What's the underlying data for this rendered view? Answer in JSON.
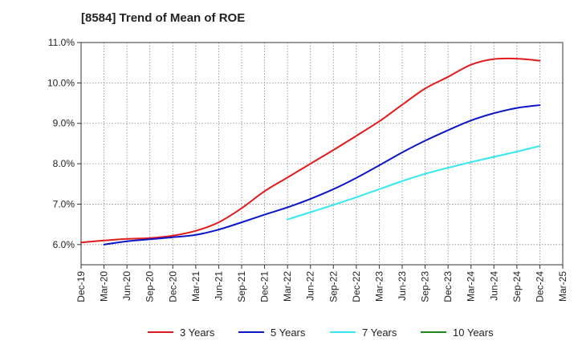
{
  "title": "[8584]  Trend of Mean of ROE",
  "chart_data": {
    "type": "line",
    "title": "[8584]  Trend of Mean of ROE",
    "xlabel": "",
    "ylabel": "",
    "x": [
      "Dec-19",
      "Mar-20",
      "Jun-20",
      "Sep-20",
      "Dec-20",
      "Mar-21",
      "Jun-21",
      "Sep-21",
      "Dec-21",
      "Mar-22",
      "Jun-22",
      "Sep-22",
      "Dec-22",
      "Mar-23",
      "Jun-23",
      "Sep-23",
      "Dec-23",
      "Mar-24",
      "Jun-24",
      "Sep-24",
      "Dec-24",
      "Mar-25"
    ],
    "yticks": [
      "6.0%",
      "7.0%",
      "8.0%",
      "9.0%",
      "10.0%",
      "11.0%"
    ],
    "ylim": [
      5.5,
      11.0
    ],
    "grid": true,
    "legend_position": "bottom",
    "series": [
      {
        "name": "3 Years",
        "color": "#e31a1c",
        "values": [
          6.05,
          6.1,
          6.14,
          6.16,
          6.22,
          6.34,
          6.55,
          6.9,
          7.32,
          7.66,
          8.0,
          8.34,
          8.69,
          9.05,
          9.46,
          9.86,
          10.15,
          10.45,
          10.59,
          10.6,
          10.55,
          null
        ]
      },
      {
        "name": "5 Years",
        "color": "#0a16c8",
        "values": [
          null,
          6.0,
          6.08,
          6.13,
          6.18,
          6.24,
          6.37,
          6.55,
          6.74,
          6.92,
          7.13,
          7.37,
          7.65,
          7.96,
          8.28,
          8.57,
          8.83,
          9.07,
          9.25,
          9.38,
          9.45,
          null
        ]
      },
      {
        "name": "7 Years",
        "color": "#33e8f0",
        "values": [
          null,
          null,
          null,
          null,
          null,
          null,
          null,
          null,
          null,
          6.62,
          6.8,
          6.98,
          7.17,
          7.37,
          7.57,
          7.75,
          7.9,
          8.04,
          8.17,
          8.3,
          8.44,
          null
        ]
      },
      {
        "name": "10 Years",
        "color": "#1b8a1b",
        "values": [
          null,
          null,
          null,
          null,
          null,
          null,
          null,
          null,
          null,
          null,
          null,
          null,
          null,
          null,
          null,
          null,
          null,
          null,
          null,
          null,
          null,
          null
        ]
      }
    ]
  }
}
